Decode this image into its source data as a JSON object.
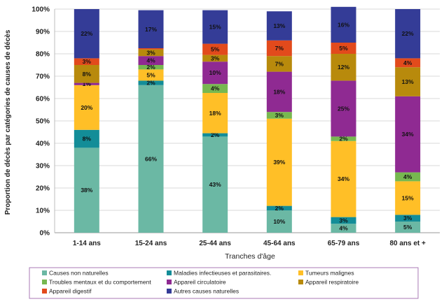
{
  "chart_data": {
    "type": "bar",
    "stacked": true,
    "title": "",
    "xlabel": "Tranches d'âge",
    "ylabel": "Proportion de décès par catégories de causes de décès",
    "ylim": [
      0,
      100
    ],
    "yticks": [
      "0%",
      "10%",
      "20%",
      "30%",
      "40%",
      "50%",
      "60%",
      "70%",
      "80%",
      "90%",
      "100%"
    ],
    "categories": [
      "1-14 ans",
      "15-24 ans",
      "25-44 ans",
      "45-64 ans",
      "65-79 ans",
      "80 ans et +"
    ],
    "series": [
      {
        "name": "Causes non naturelles",
        "color": "#6BB8A4",
        "values": [
          38,
          66,
          43,
          10,
          4,
          5
        ],
        "labels": [
          "38%",
          "66%",
          "43%",
          "10%",
          "4%",
          "5%"
        ]
      },
      {
        "name": "Maladies infectieuses et parasitaires.",
        "color": "#138D98",
        "values": [
          8,
          2,
          1.5,
          2,
          3,
          3
        ],
        "labels": [
          "8%",
          "2%",
          "2%",
          "2%",
          "3%",
          "3%"
        ]
      },
      {
        "name": "Tumeurs malignes",
        "color": "#FFBF27",
        "values": [
          20,
          5,
          18,
          39,
          34,
          15
        ],
        "labels": [
          "20%",
          "5%",
          "18%",
          "39%",
          "34%",
          "15%"
        ]
      },
      {
        "name": "Troubles mentaux et du comportement",
        "color": "#77B850",
        "values": [
          0,
          2,
          4,
          3,
          2,
          4
        ],
        "labels": [
          "",
          "2%",
          "4%",
          "3%",
          "2%",
          "4%"
        ]
      },
      {
        "name": "Appareil circulatoire",
        "color": "#8F2A92",
        "values": [
          1,
          4,
          10,
          18,
          25,
          34
        ],
        "labels": [
          "1%",
          "4%",
          "10%",
          "18%",
          "25%",
          "34%"
        ]
      },
      {
        "name": "Appareil respiratoire",
        "color": "#B88A0C",
        "values": [
          8,
          3,
          3,
          7,
          12,
          13
        ],
        "labels": [
          "8%",
          "3%",
          "3%",
          "7%",
          "12%",
          "13%"
        ]
      },
      {
        "name": "Appareil digestif",
        "color": "#E24A1C",
        "values": [
          3,
          0.5,
          5,
          7,
          5,
          4
        ],
        "labels": [
          "3%",
          "",
          "5%",
          "7%",
          "5%",
          "4%"
        ]
      },
      {
        "name": "Autres causes naturelles",
        "color": "#343C97",
        "values": [
          22,
          17,
          15,
          13,
          16,
          22
        ],
        "labels": [
          "22%",
          "17%",
          "15%",
          "13%",
          "16%",
          "22%"
        ]
      }
    ],
    "legend_position": "bottom",
    "legend_columns": 3,
    "legend_border_color": "#A87AB5",
    "grid": true
  }
}
